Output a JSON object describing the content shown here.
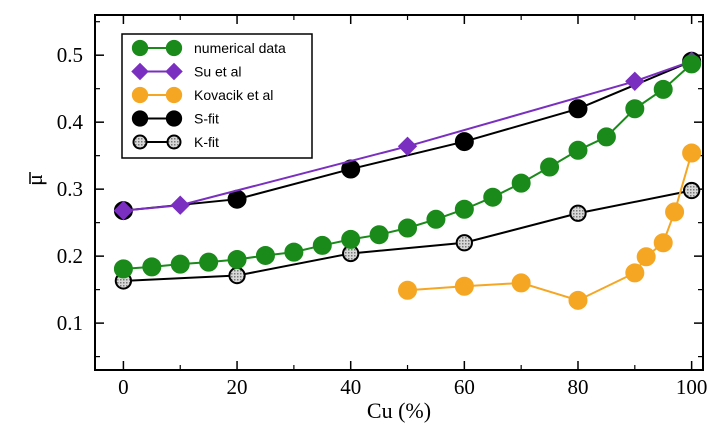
{
  "chart_data": {
    "type": "line",
    "xlabel": "Cu (%)",
    "ylabel": "μ",
    "xlim": [
      -5,
      102
    ],
    "ylim": [
      0.03,
      0.56
    ],
    "xticks": [
      0,
      20,
      40,
      60,
      80,
      100
    ],
    "yticks": [
      0.1,
      0.2,
      0.3,
      0.4,
      0.5
    ],
    "legend_position": "top-left",
    "series": [
      {
        "name": "numerical data",
        "color": "#1a8a1a",
        "marker": "circle",
        "x": [
          0,
          5,
          10,
          15,
          20,
          25,
          30,
          35,
          40,
          45,
          50,
          55,
          60,
          65,
          70,
          75,
          80,
          85,
          90,
          95,
          100
        ],
        "y": [
          0.181,
          0.184,
          0.188,
          0.191,
          0.195,
          0.201,
          0.206,
          0.216,
          0.225,
          0.232,
          0.242,
          0.255,
          0.27,
          0.288,
          0.309,
          0.333,
          0.358,
          0.378,
          0.42,
          0.449,
          0.487
        ]
      },
      {
        "name": "Su et al",
        "color": "#7a2fc0",
        "marker": "diamond",
        "x": [
          0,
          10,
          50,
          90,
          100
        ],
        "y": [
          0.268,
          0.276,
          0.364,
          0.461,
          0.491
        ]
      },
      {
        "name": "Kovacik et al",
        "color": "#f5a623",
        "marker": "circle",
        "x": [
          50,
          60,
          70,
          80,
          90,
          92,
          95,
          97,
          100
        ],
        "y": [
          0.149,
          0.155,
          0.16,
          0.134,
          0.175,
          0.199,
          0.22,
          0.266,
          0.354
        ]
      },
      {
        "name": "S-fit",
        "color": "#000000",
        "marker": "circle",
        "x": [
          0,
          20,
          40,
          60,
          80,
          100
        ],
        "y": [
          0.268,
          0.285,
          0.33,
          0.371,
          0.42,
          0.491
        ]
      },
      {
        "name": "K-fit",
        "color": "#000000",
        "fill": "#b8b8b8",
        "marker": "circle-hatched",
        "x": [
          0,
          20,
          40,
          60,
          80,
          100
        ],
        "y": [
          0.163,
          0.171,
          0.204,
          0.22,
          0.264,
          0.298
        ]
      }
    ]
  }
}
